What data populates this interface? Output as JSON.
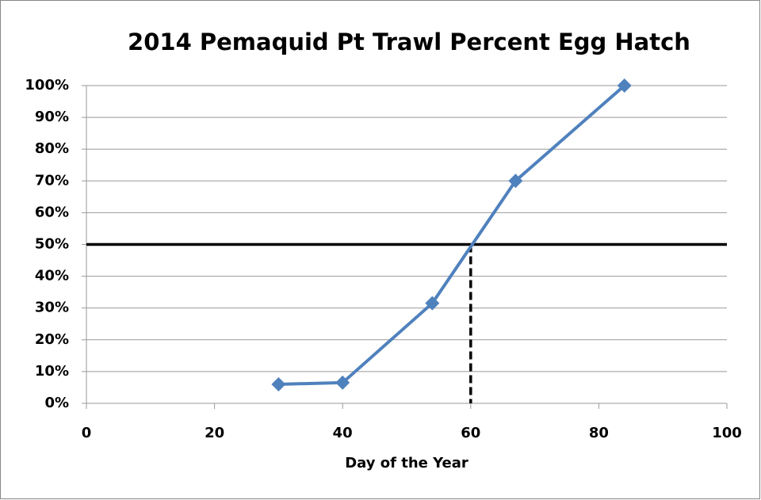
{
  "chart_data": {
    "type": "line",
    "title": "2014 Pemaquid Pt Trawl Percent Egg Hatch",
    "xlabel": "Day of the Year",
    "x": [
      30,
      40,
      54,
      67,
      84
    ],
    "series": [
      {
        "color": "#4f81bd",
        "values": [
          6,
          6.5,
          31.5,
          70,
          100
        ]
      }
    ],
    "xlim": [
      0,
      100
    ],
    "xticks": [
      0,
      20,
      40,
      60,
      80,
      100
    ],
    "ylim": [
      0,
      100
    ],
    "yticks": [
      {
        "value": 0,
        "label": "0%"
      },
      {
        "value": 10,
        "label": "10%"
      },
      {
        "value": 20,
        "label": "20%"
      },
      {
        "value": 30,
        "label": "30%"
      },
      {
        "value": 40,
        "label": "40%"
      },
      {
        "value": 50,
        "label": "50%"
      },
      {
        "value": 60,
        "label": "60%"
      },
      {
        "value": 70,
        "label": "70%"
      },
      {
        "value": 80,
        "label": "80%"
      },
      {
        "value": 90,
        "label": "90%"
      },
      {
        "value": 100,
        "label": "100%"
      }
    ],
    "grid": true,
    "hline": 50,
    "vline": 60
  }
}
